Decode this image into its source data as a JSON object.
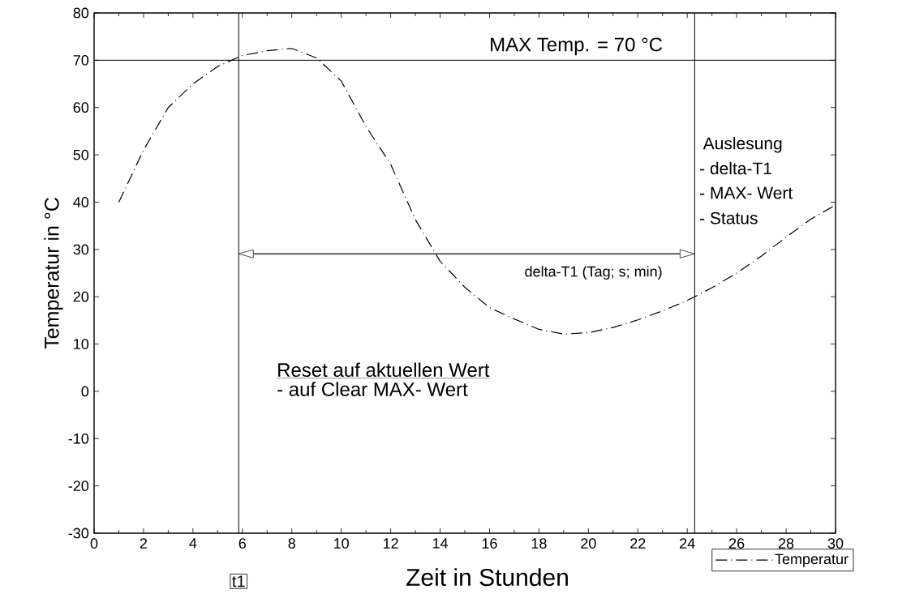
{
  "chart_data": {
    "type": "line",
    "xlabel": "Zeit in Stunden",
    "ylabel": "Temperatur in °C",
    "x": [
      1,
      2,
      3,
      4,
      5,
      6,
      7,
      8,
      9,
      10,
      11,
      12,
      13,
      14,
      15,
      16,
      17,
      18,
      19,
      20,
      21,
      22,
      23,
      24,
      25,
      26,
      27,
      28,
      29,
      30
    ],
    "series": [
      {
        "name": "Temperatur",
        "color": "#000000",
        "line_style": "dashed",
        "values": [
          40,
          51,
          60,
          65,
          68.7,
          71,
          72,
          72.5,
          70.5,
          65.6,
          56,
          48,
          36.3,
          27.5,
          22,
          17.7,
          15.3,
          13.1,
          12.1,
          12.4,
          13.5,
          15.1,
          17,
          19.2,
          21.9,
          25,
          28.6,
          32.6,
          36.4,
          39.4
        ]
      }
    ],
    "xlim": [
      0,
      30
    ],
    "xticks": [
      0,
      2,
      4,
      6,
      8,
      10,
      12,
      14,
      16,
      18,
      20,
      22,
      24,
      26,
      28,
      30
    ],
    "ylim": [
      -30,
      80
    ],
    "yticks": [
      -30,
      -20,
      -10,
      0,
      10,
      20,
      30,
      40,
      50,
      60,
      70,
      80
    ],
    "ref_lines": [
      {
        "axis": "y",
        "value": 70,
        "label": "MAX Temp. = 70 °C"
      },
      {
        "axis": "x",
        "value": 5.85,
        "label": "t1"
      },
      {
        "axis": "x",
        "value": 24.3
      }
    ],
    "annotations": [
      "delta-T1 (Tag; s; min)",
      "Auslesung",
      "- delta-T1",
      "- MAX- Wert",
      "- Status",
      "Reset auf aktuellen Wert",
      "- auf Clear MAX- Wert"
    ],
    "grid": false,
    "legend": "bottom right"
  }
}
